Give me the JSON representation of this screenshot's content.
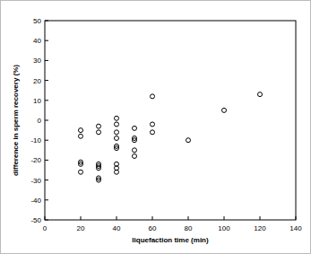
{
  "chart_data": {
    "type": "scatter",
    "x_label": "liquefaction time (min)",
    "y_label": "difference in sperm recovery (%)",
    "x": [
      20,
      20,
      20,
      20,
      20,
      30,
      30,
      30,
      30,
      30,
      30,
      30,
      40,
      40,
      40,
      40,
      40,
      40,
      40,
      40,
      40,
      50,
      50,
      50,
      50,
      50,
      60,
      60,
      60,
      80,
      100,
      120
    ],
    "values": [
      -5,
      -8,
      -21,
      -22,
      -26,
      -3,
      -6,
      -22,
      -23,
      -24,
      -29,
      -30,
      1,
      -2,
      -6,
      -9,
      -13,
      -14,
      -22,
      -24,
      -26,
      -4,
      -9,
      -10,
      -15,
      -18,
      12,
      -2,
      -6,
      -10,
      5,
      13
    ],
    "color": "#000000",
    "marker": "circle",
    "grid": false,
    "xlim": [
      0,
      140
    ],
    "xticks": [
      0,
      20,
      40,
      60,
      80,
      100,
      120,
      140
    ],
    "ylim": [
      -50,
      50
    ],
    "yticks": [
      -50,
      -40,
      -30,
      -20,
      -10,
      0,
      10,
      20,
      30,
      40,
      50
    ]
  }
}
